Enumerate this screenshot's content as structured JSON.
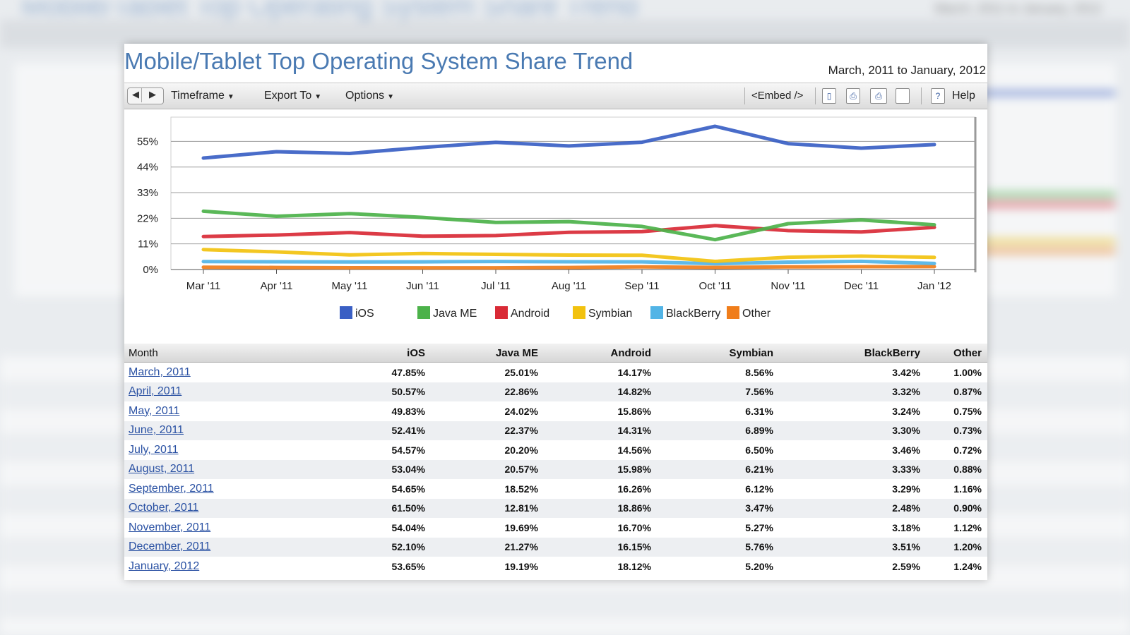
{
  "title": "Mobile/Tablet Top Operating System Share Trend",
  "date_range": "March, 2011 to January, 2012",
  "toolbar": {
    "timeframe_label": "Timeframe",
    "export_label": "Export To",
    "options_label": "Options",
    "embed_label": "<Embed />",
    "help_label": "Help"
  },
  "chart_data": {
    "type": "line",
    "categories": [
      "Mar '11",
      "Apr '11",
      "May '11",
      "Jun '11",
      "Jul '11",
      "Aug '11",
      "Sep '11",
      "Oct '11",
      "Nov '11",
      "Dec '11",
      "Jan '12"
    ],
    "y_ticks": [
      "0%",
      "11%",
      "22%",
      "33%",
      "44%",
      "55%"
    ],
    "ylim": [
      0,
      63
    ],
    "grid": true,
    "legend_position": "bottom",
    "series": [
      {
        "name": "iOS",
        "color": "#3a5fc4",
        "values": [
          47.85,
          50.57,
          49.83,
          52.41,
          54.57,
          53.04,
          54.65,
          61.5,
          54.04,
          52.1,
          53.65
        ]
      },
      {
        "name": "Java ME",
        "color": "#4cb24a",
        "values": [
          25.01,
          22.86,
          24.02,
          22.37,
          20.2,
          20.57,
          18.52,
          12.81,
          19.69,
          21.27,
          19.19
        ]
      },
      {
        "name": "Android",
        "color": "#d92a36",
        "values": [
          14.17,
          14.82,
          15.86,
          14.31,
          14.56,
          15.98,
          16.26,
          18.86,
          16.7,
          16.15,
          18.12
        ]
      },
      {
        "name": "Symbian",
        "color": "#f2c20f",
        "values": [
          8.56,
          7.56,
          6.31,
          6.89,
          6.5,
          6.21,
          6.12,
          3.47,
          5.27,
          5.76,
          5.2
        ]
      },
      {
        "name": "BlackBerry",
        "color": "#52b4e6",
        "values": [
          3.42,
          3.32,
          3.24,
          3.3,
          3.46,
          3.33,
          3.29,
          2.48,
          3.18,
          3.51,
          2.59
        ]
      },
      {
        "name": "Other",
        "color": "#f07d1a",
        "values": [
          1.0,
          0.87,
          0.75,
          0.73,
          0.72,
          0.88,
          1.16,
          0.9,
          1.12,
          1.2,
          1.24
        ]
      }
    ]
  },
  "table": {
    "headers": [
      "Month",
      "iOS",
      "Java ME",
      "Android",
      "Symbian",
      "BlackBerry",
      "Other"
    ],
    "rows": [
      [
        "March, 2011",
        "47.85%",
        "25.01%",
        "14.17%",
        "8.56%",
        "3.42%",
        "1.00%"
      ],
      [
        "April, 2011",
        "50.57%",
        "22.86%",
        "14.82%",
        "7.56%",
        "3.32%",
        "0.87%"
      ],
      [
        "May, 2011",
        "49.83%",
        "24.02%",
        "15.86%",
        "6.31%",
        "3.24%",
        "0.75%"
      ],
      [
        "June, 2011",
        "52.41%",
        "22.37%",
        "14.31%",
        "6.89%",
        "3.30%",
        "0.73%"
      ],
      [
        "July, 2011",
        "54.57%",
        "20.20%",
        "14.56%",
        "6.50%",
        "3.46%",
        "0.72%"
      ],
      [
        "August, 2011",
        "53.04%",
        "20.57%",
        "15.98%",
        "6.21%",
        "3.33%",
        "0.88%"
      ],
      [
        "September, 2011",
        "54.65%",
        "18.52%",
        "16.26%",
        "6.12%",
        "3.29%",
        "1.16%"
      ],
      [
        "October, 2011",
        "61.50%",
        "12.81%",
        "18.86%",
        "3.47%",
        "2.48%",
        "0.90%"
      ],
      [
        "November, 2011",
        "54.04%",
        "19.69%",
        "16.70%",
        "5.27%",
        "3.18%",
        "1.12%"
      ],
      [
        "December, 2011",
        "52.10%",
        "21.27%",
        "16.15%",
        "5.76%",
        "3.51%",
        "1.20%"
      ],
      [
        "January, 2012",
        "53.65%",
        "19.19%",
        "18.12%",
        "5.20%",
        "2.59%",
        "1.24%"
      ]
    ]
  }
}
